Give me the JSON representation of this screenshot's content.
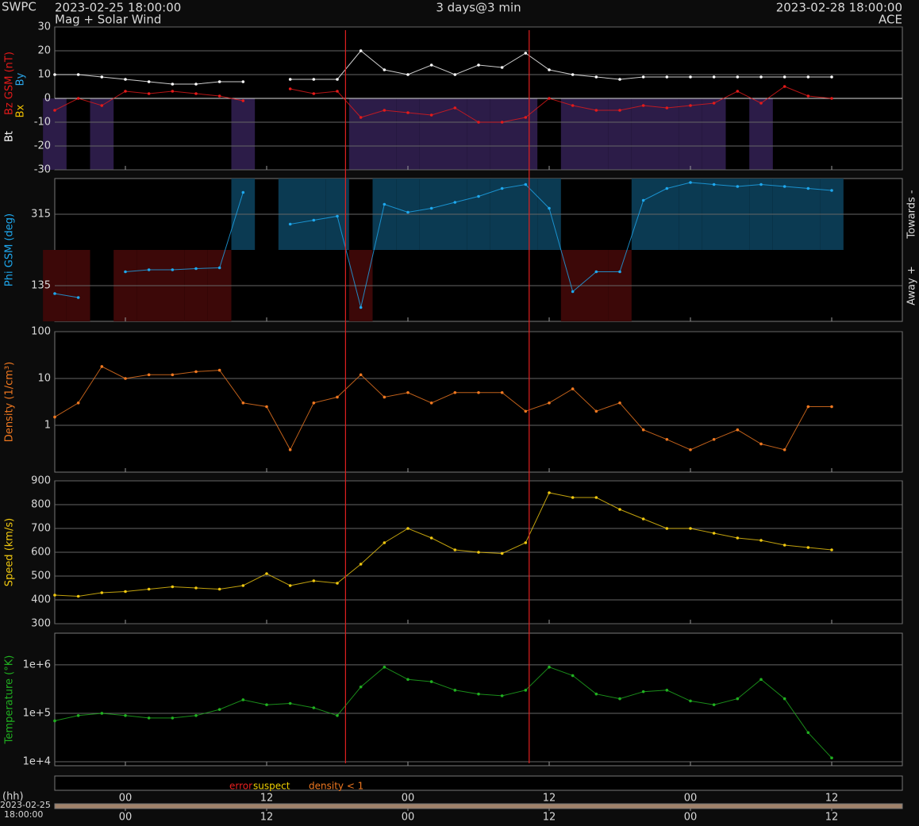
{
  "header": {
    "agency": "SWPC",
    "start": "2023-02-25 18:00:00",
    "product": "Mag + Solar Wind",
    "span": "3 days@3 min",
    "end": "2023-02-28 18:00:00",
    "source": "ACE"
  },
  "chart_data": [
    {
      "type": "line",
      "extra_labels": [
        {
          "text": "By",
          "color": "#2aa6ea"
        },
        {
          "text": "Bx",
          "color": "#f0c000"
        }
      ],
      "x": [
        0,
        2,
        4,
        6,
        8,
        10,
        12,
        14,
        16,
        18,
        20,
        22,
        24,
        26,
        28,
        30,
        32,
        34,
        36,
        38,
        40,
        42,
        44,
        46,
        48,
        50,
        52,
        54,
        56,
        58,
        60,
        62,
        64,
        66
      ],
      "series": [
        {
          "name": "Bt",
          "color": "#ffffff",
          "values": [
            10,
            10,
            9,
            8,
            7,
            6,
            6,
            7,
            7,
            null,
            8,
            8,
            8,
            20,
            12,
            10,
            14,
            10,
            14,
            13,
            19,
            12,
            10,
            9,
            8,
            9,
            9,
            9,
            9,
            9,
            9,
            9,
            9,
            9
          ]
        },
        {
          "name": "Bz GSM (nT)",
          "color": "#e41a1a",
          "shade_below_zero": "#2c1c48",
          "values": [
            -5,
            0,
            -3,
            3,
            2,
            3,
            2,
            1,
            -1,
            null,
            4,
            2,
            3,
            -8,
            -5,
            -6,
            -7,
            -4,
            -10,
            -10,
            -8,
            0,
            -3,
            -5,
            -5,
            -3,
            -4,
            -3,
            -2,
            3,
            -2,
            5,
            1,
            0
          ]
        }
      ],
      "ylim": [
        -30,
        30
      ],
      "yticks": [
        -30,
        -20,
        -10,
        0,
        10,
        20,
        30
      ],
      "grid": true
    },
    {
      "type": "line",
      "ylabel": "Phi GSM (deg)",
      "right_labels": [
        "Towards -",
        "Away +"
      ],
      "x": [
        0,
        2,
        4,
        6,
        8,
        10,
        12,
        14,
        16,
        18,
        20,
        22,
        24,
        26,
        28,
        30,
        32,
        34,
        36,
        38,
        40,
        42,
        44,
        46,
        48,
        50,
        52,
        54,
        56,
        58,
        60,
        62,
        64,
        66
      ],
      "series": [
        {
          "name": "Phi",
          "color": "#1ea8ee",
          "towards_color": "#0b3a52",
          "away_color": "#3c0808",
          "values": [
            115,
            105,
            null,
            170,
            175,
            175,
            178,
            180,
            370,
            null,
            290,
            300,
            310,
            80,
            340,
            320,
            330,
            345,
            360,
            380,
            390,
            330,
            120,
            170,
            170,
            350,
            380,
            395,
            390,
            385,
            390,
            385,
            380,
            375
          ]
        }
      ],
      "ylim": [
        45,
        405
      ],
      "yticks": [
        135,
        315
      ],
      "grid": true
    },
    {
      "type": "line",
      "ylabel": "Density (1/cm³)",
      "yscale": "log",
      "x": [
        0,
        2,
        4,
        6,
        8,
        10,
        12,
        14,
        16,
        18,
        20,
        22,
        24,
        26,
        28,
        30,
        32,
        34,
        36,
        38,
        40,
        42,
        44,
        46,
        48,
        50,
        52,
        54,
        56,
        58,
        60,
        62,
        64,
        66
      ],
      "series": [
        {
          "name": "Density",
          "color": "#f07820",
          "values": [
            1.5,
            3,
            18,
            10,
            12,
            12,
            14,
            15,
            3,
            2.5,
            0.3,
            3,
            4,
            12,
            4,
            5,
            3,
            5,
            5,
            5,
            2,
            3,
            6,
            2,
            3,
            0.8,
            0.5,
            0.3,
            0.5,
            0.8,
            0.4,
            0.3,
            2.5,
            2.5
          ]
        }
      ],
      "ylim": [
        0.1,
        100
      ],
      "yticks": [
        1,
        10,
        100
      ],
      "grid": true
    },
    {
      "type": "line",
      "ylabel": "Speed (km/s)",
      "x": [
        0,
        2,
        4,
        6,
        8,
        10,
        12,
        14,
        16,
        18,
        20,
        22,
        24,
        26,
        28,
        30,
        32,
        34,
        36,
        38,
        40,
        42,
        44,
        46,
        48,
        50,
        52,
        54,
        56,
        58,
        60,
        62,
        64,
        66
      ],
      "series": [
        {
          "name": "Speed",
          "color": "#f0c810",
          "values": [
            420,
            415,
            430,
            435,
            445,
            455,
            450,
            445,
            460,
            510,
            460,
            480,
            470,
            550,
            640,
            700,
            660,
            610,
            600,
            595,
            640,
            850,
            830,
            830,
            780,
            740,
            700,
            700,
            680,
            660,
            650,
            630,
            620,
            610
          ]
        }
      ],
      "ylim": [
        300,
        900
      ],
      "yticks": [
        300,
        400,
        500,
        600,
        700,
        800,
        900
      ],
      "grid": true
    },
    {
      "type": "line",
      "ylabel": "Temperature (°K)",
      "yscale": "log",
      "x": [
        0,
        2,
        4,
        6,
        8,
        10,
        12,
        14,
        16,
        18,
        20,
        22,
        24,
        26,
        28,
        30,
        32,
        34,
        36,
        38,
        40,
        42,
        44,
        46,
        48,
        50,
        52,
        54,
        56,
        58,
        60,
        62,
        64,
        66
      ],
      "series": [
        {
          "name": "Temperature",
          "color": "#20b020",
          "values": [
            70000,
            90000,
            100000,
            90000,
            80000,
            80000,
            90000,
            120000,
            190000,
            150000,
            160000,
            130000,
            90000,
            350000,
            900000,
            500000,
            450000,
            300000,
            250000,
            230000,
            300000,
            900000,
            600000,
            250000,
            200000,
            280000,
            300000,
            180000,
            150000,
            200000,
            500000,
            200000,
            40000,
            12000
          ]
        }
      ],
      "ylim": [
        8300,
        4500000
      ],
      "yticks": [
        {
          "value": 10000,
          "label": "1e+4"
        },
        {
          "value": 100000,
          "label": "1e+5"
        },
        {
          "value": 1000000,
          "label": "1e+6"
        }
      ],
      "grid": true
    }
  ],
  "footer": {
    "x_unit": "(hh)",
    "start_date": "2023-02-25",
    "start_time": "18:00:00",
    "xlim": [
      0,
      72
    ],
    "xticks": [
      {
        "value": 6,
        "label": "00"
      },
      {
        "value": 18,
        "label": "12"
      },
      {
        "value": 30,
        "label": "00"
      },
      {
        "value": 42,
        "label": "12"
      },
      {
        "value": 54,
        "label": "00"
      },
      {
        "value": 66,
        "label": "12"
      }
    ],
    "event_lines_x": [
      24.7,
      40.3
    ],
    "event_color": "#e02020",
    "quality_legend": [
      {
        "text": "error",
        "color": "#e82020"
      },
      {
        "text": "suspect",
        "color": "#f0d000"
      },
      {
        "text": "density < 1",
        "color": "#f07820"
      }
    ]
  }
}
